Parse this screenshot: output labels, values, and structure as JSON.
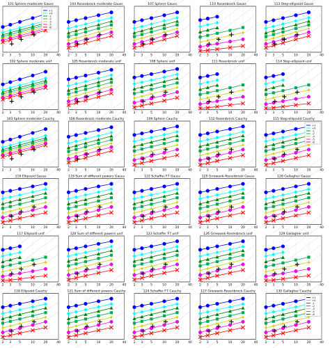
{
  "figure": {
    "x_ticks": [
      "2",
      "3",
      "5",
      "10",
      "20",
      "40"
    ],
    "x_tick_values": [
      2,
      3,
      5,
      10,
      20,
      40
    ],
    "legend": [
      "+1",
      "+0",
      "-1",
      "-2",
      "-3",
      "-5",
      "-8"
    ],
    "legend_colors": [
      "#0000ff",
      "#00ffff",
      "#008000",
      "#00aa55",
      "#cccc00",
      "#ff00ff",
      "#ff0000"
    ],
    "legend_panels": [
      0,
      14
    ]
  },
  "chart_data": [
    {
      "type": "line",
      "title": "101 Sphere moderate Gauss",
      "profile": "flat"
    },
    {
      "type": "line",
      "title": "104 Rosenbrock moderate Gauss",
      "profile": "mid"
    },
    {
      "type": "line",
      "title": "107 Sphere Gauss",
      "profile": "mid"
    },
    {
      "type": "line",
      "title": "110 Rosenbrock Gauss",
      "profile": "sparse"
    },
    {
      "type": "line",
      "title": "113 Step-ellipsoid Gauss",
      "profile": "mid"
    },
    {
      "type": "line",
      "title": "102 Sphere moderate unif",
      "profile": "flat"
    },
    {
      "type": "line",
      "title": "105 Rosenbrock moderate unif",
      "profile": "mid"
    },
    {
      "type": "line",
      "title": "108 Sphere unif",
      "profile": "spread"
    },
    {
      "type": "line",
      "title": "111 Rosenbrock unif",
      "profile": "sparse"
    },
    {
      "type": "line",
      "title": "114 Step-ellipsoid unif",
      "profile": "sparse"
    },
    {
      "type": "line",
      "title": "103 Sphere moderate Cauchy",
      "profile": "flat"
    },
    {
      "type": "line",
      "title": "106 Rosenbrock moderate Cauchy",
      "profile": "mid"
    },
    {
      "type": "line",
      "title": "109 Sphere Cauchy",
      "profile": "spread"
    },
    {
      "type": "line",
      "title": "112 Rosenbrock Cauchy",
      "profile": "spread"
    },
    {
      "type": "line",
      "title": "115 Step-ellipsoid Cauchy",
      "profile": "spread"
    },
    {
      "type": "line",
      "title": "116 Ellipsoid Gauss",
      "profile": "spread"
    },
    {
      "type": "line",
      "title": "119 Sum of different powers Gauss",
      "profile": "spread"
    },
    {
      "type": "line",
      "title": "122 Schaffer F7 Gauss",
      "profile": "spread"
    },
    {
      "type": "line",
      "title": "125 Griewank-Rosenbrock Gauss",
      "profile": "spread"
    },
    {
      "type": "line",
      "title": "128 Gallagher Gauss",
      "profile": "spread"
    },
    {
      "type": "line",
      "title": "117 Ellipsoid unif",
      "profile": "sparse"
    },
    {
      "type": "line",
      "title": "120 Sum of different powers unif",
      "profile": "spread"
    },
    {
      "type": "line",
      "title": "123 Schaffer F7 unif",
      "profile": "spread"
    },
    {
      "type": "line",
      "title": "126 Griewank-Rosenbrock unif",
      "profile": "spread"
    },
    {
      "type": "line",
      "title": "129 Gallagher unif",
      "profile": "sparse"
    },
    {
      "type": "line",
      "title": "118 Ellipsoid Cauchy",
      "profile": "spread"
    },
    {
      "type": "line",
      "title": "121 Sum of different powers Cauchy",
      "profile": "spread"
    },
    {
      "type": "line",
      "title": "124 Schaffer F7 Cauchy",
      "profile": "spread"
    },
    {
      "type": "line",
      "title": "127 Griewank-Rosenbrock Cauchy",
      "profile": "spread"
    },
    {
      "type": "line",
      "title": "130 Gallagher Cauchy",
      "profile": "spread"
    }
  ]
}
